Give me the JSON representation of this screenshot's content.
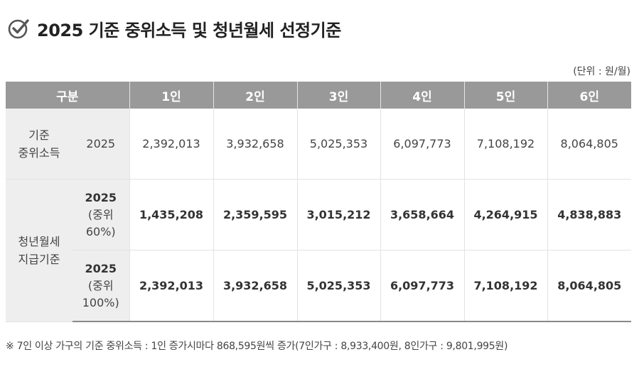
{
  "title": {
    "icon": "check-circle-icon",
    "text": "2025 기준 중위소득 및 청년월세 선정기준"
  },
  "unit_label": "(단위 : 원/월)",
  "table": {
    "header": {
      "category": "구분",
      "columns": [
        "1인",
        "2인",
        "3인",
        "4인",
        "5인",
        "6인"
      ]
    },
    "groups": {
      "median_income": {
        "label_line1": "기준",
        "label_line2": "중위소득",
        "row": {
          "sub": "2025",
          "values": [
            "2,392,013",
            "3,932,658",
            "5,025,353",
            "6,097,773",
            "7,108,192",
            "8,064,805"
          ]
        }
      },
      "youth_rent": {
        "label_line1": "청년월세",
        "label_line2": "지급기준",
        "rows": [
          {
            "sub_main": "2025",
            "sub_line2": "(중위",
            "sub_line3": "60%)",
            "values": [
              "1,435,208",
              "2,359,595",
              "3,015,212",
              "3,658,664",
              "4,264,915",
              "4,838,883"
            ]
          },
          {
            "sub_main": "2025",
            "sub_line2": "(중위",
            "sub_line3": "100%)",
            "values": [
              "2,392,013",
              "3,932,658",
              "5,025,353",
              "6,097,773",
              "7,108,192",
              "8,064,805"
            ]
          }
        ]
      }
    }
  },
  "footnote": "※ 7인 이상 가구의 기준 중위소득 : 1인 증가시마다 868,595원씩 증가(7인가구 : 8,933,400원, 8인가구 : 9,801,995원)",
  "colors": {
    "header_bg": "#999999",
    "category_bg": "#eeeeee",
    "text": "#333333"
  }
}
